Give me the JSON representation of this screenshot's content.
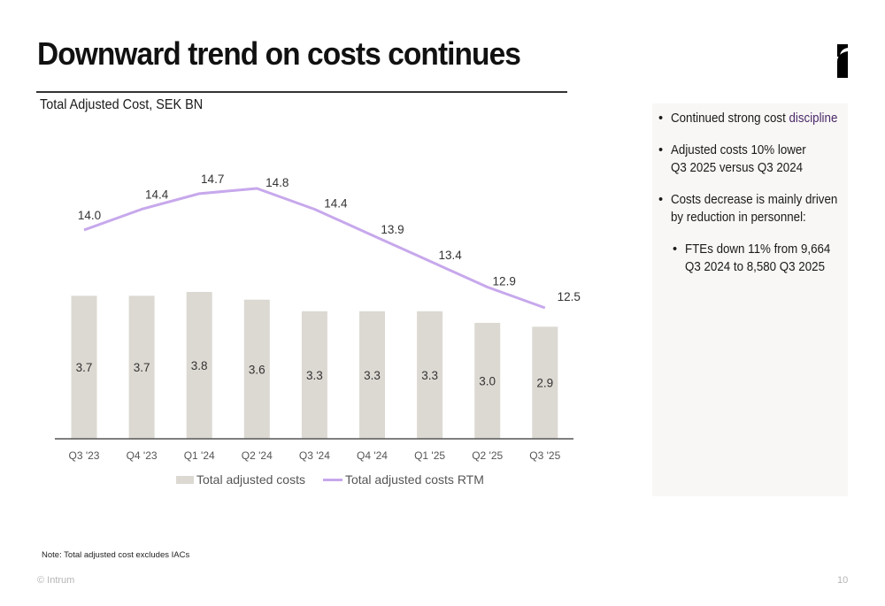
{
  "header": {
    "title": "Downward trend on costs continues",
    "logo": "intrum-logo-icon"
  },
  "colors": {
    "bar": "#dcd9d2",
    "line": "#c7a8ec",
    "accent_text": "#4b2a6a",
    "panel_bg": "#f8f7f5",
    "axis": "#555555"
  },
  "chart_data": {
    "type": "bar",
    "title": "Total Adjusted Cost, SEK BN",
    "xlabel": "",
    "ylabel": "",
    "categories": [
      "Q3 '23",
      "Q4 '23",
      "Q1 '24",
      "Q2 '24",
      "Q3 '24",
      "Q4 '24",
      "Q1 '25",
      "Q2 '25",
      "Q3 '25"
    ],
    "series": [
      {
        "name": "Total adjusted costs",
        "type": "bar",
        "values": [
          3.7,
          3.7,
          3.8,
          3.6,
          3.3,
          3.3,
          3.3,
          3.0,
          2.9
        ]
      },
      {
        "name": "Total adjusted costs RTM",
        "type": "line",
        "values": [
          14.0,
          14.4,
          14.7,
          14.8,
          14.4,
          13.9,
          13.4,
          12.9,
          12.5
        ]
      }
    ],
    "data_labels": true,
    "grid": false,
    "legend": "bottom"
  },
  "legend": {
    "bar_label": "Total adjusted costs",
    "line_label": "Total adjusted costs RTM"
  },
  "side_panel": {
    "bullets": [
      {
        "text": "Continued strong cost ",
        "accent": "discipline"
      },
      {
        "lines": [
          "Adjusted costs 10% lower",
          "Q3 2025 versus Q3 2024"
        ]
      },
      {
        "lines": [
          "Costs decrease is mainly driven",
          "by reduction in personnel:"
        ]
      }
    ],
    "sub_bullets": [
      {
        "lines": [
          "FTEs down 11% from 9,664",
          "Q3 2024 to 8,580 Q3 2025"
        ]
      }
    ]
  },
  "footer": {
    "note": "Note: Total adjusted cost excludes IACs",
    "copyright": "© Intrum",
    "page_number": "10"
  }
}
